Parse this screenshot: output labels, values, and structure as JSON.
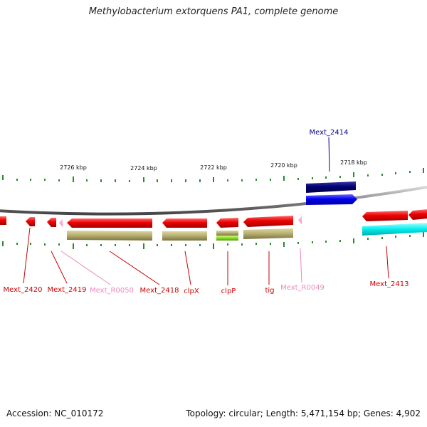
{
  "title": "Methylobacterium extorquens PA1, complete genome",
  "footer": {
    "accession": "Accession: NC_010172",
    "topology": "Topology: circular; Length: 5,471,154 bp; Genes: 4,902"
  },
  "scale_labels": [
    "2726 kbp",
    "2724 kbp",
    "2722 kbp",
    "2720 kbp",
    "2718 kbp"
  ],
  "genes": [
    {
      "name": "Mext_2420",
      "color": "#cc0000"
    },
    {
      "name": "Mext_2419",
      "color": "#cc0000"
    },
    {
      "name": "Mext_R0050",
      "color": "#ee88bb"
    },
    {
      "name": "Mext_2418",
      "color": "#cc0000"
    },
    {
      "name": "clpX",
      "color": "#cc0000"
    },
    {
      "name": "clpP",
      "color": "#cc0000"
    },
    {
      "name": "tig",
      "color": "#cc0000"
    },
    {
      "name": "Mext_R0049",
      "color": "#ee88bb"
    },
    {
      "name": "Mext_2413",
      "color": "#cc0000"
    },
    {
      "name": "Mext_2414",
      "color": "#000088"
    }
  ],
  "colors": {
    "cds": "#ee0000",
    "rna": "#ffaacc",
    "cds_top_strand": "#0000ee",
    "cds_top_dark": "#000077",
    "cog_olive": "#b5ad6e",
    "cog_lime": "#88dd22",
    "cog_cyan": "#00eeee",
    "tick": "#2a8a2a",
    "backbone": "#8a8a8a"
  }
}
